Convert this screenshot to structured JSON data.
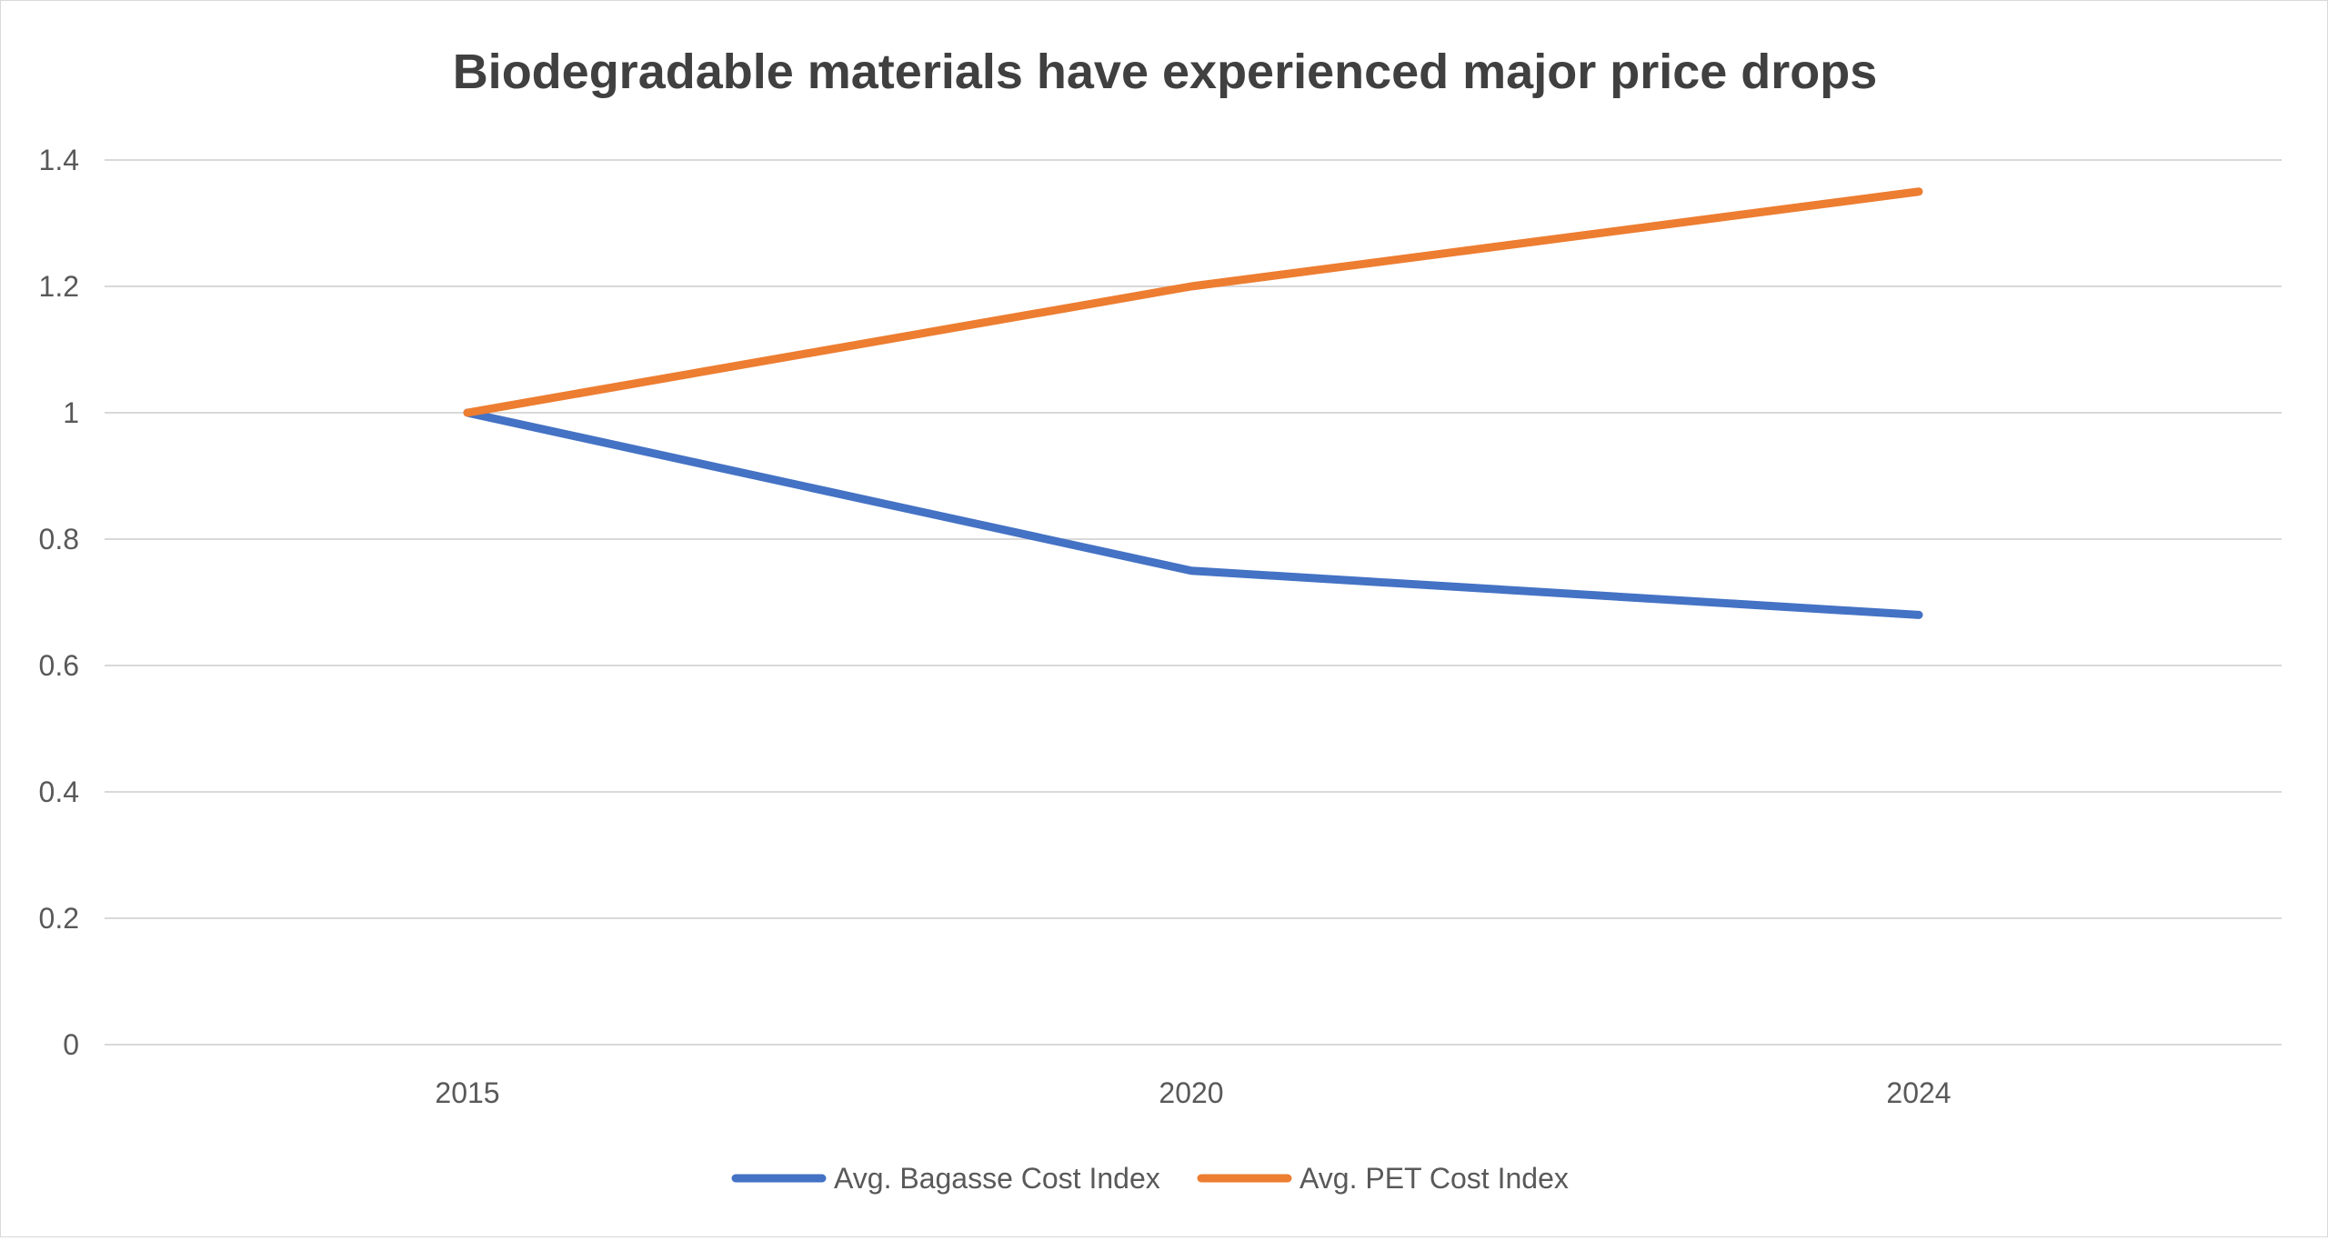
{
  "chart_data": {
    "type": "line",
    "title": "Biodegradable materials have experienced major price drops",
    "categories": [
      "2015",
      "2020",
      "2024"
    ],
    "series": [
      {
        "name": "Avg. Bagasse Cost Index",
        "values": [
          1,
          0.75,
          0.68
        ],
        "color": "#4472C4"
      },
      {
        "name": "Avg. PET Cost Index",
        "values": [
          1,
          1.2,
          1.35
        ],
        "color": "#ED7D31"
      }
    ],
    "yticks": [
      "0",
      "0.2",
      "0.4",
      "0.6",
      "0.8",
      "1",
      "1.2",
      "1.4"
    ],
    "ylim": [
      0,
      1.4
    ],
    "xlabel": "",
    "ylabel": "",
    "grid": true,
    "gridline_color": "#d9d9d9",
    "legend": "bottom"
  }
}
